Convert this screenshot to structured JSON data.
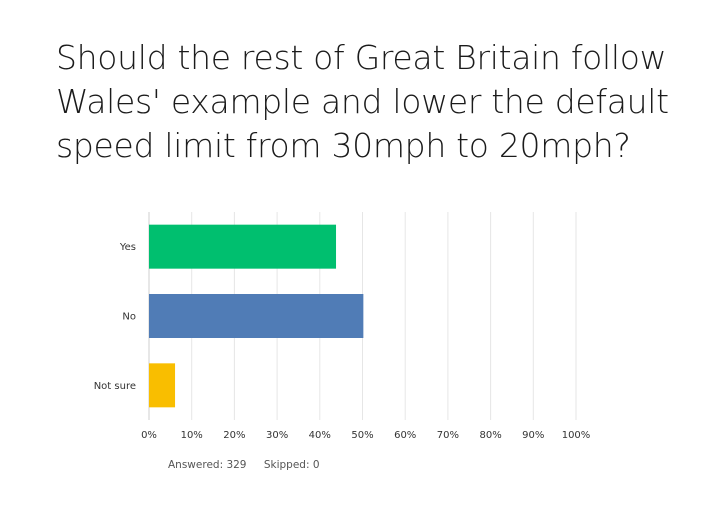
{
  "title_lines": [
    "Should the rest of Great Britain follow",
    "Wales' example and lower the default",
    "speed limit from 30mph to 20mph?"
  ],
  "footer": {
    "answered": "Answered: 329",
    "skipped": "Skipped: 0"
  },
  "chart_data": {
    "type": "bar",
    "orientation": "horizontal",
    "categories": [
      "Yes",
      "No",
      "Not sure"
    ],
    "values": [
      43.8,
      50.2,
      6.1
    ],
    "colors": [
      "#00bf6f",
      "#507cb6",
      "#f9be00"
    ],
    "xlim": [
      0,
      100
    ],
    "x_ticks": [
      "0%",
      "10%",
      "20%",
      "30%",
      "40%",
      "50%",
      "60%",
      "70%",
      "80%",
      "90%",
      "100%"
    ],
    "grid": true
  }
}
